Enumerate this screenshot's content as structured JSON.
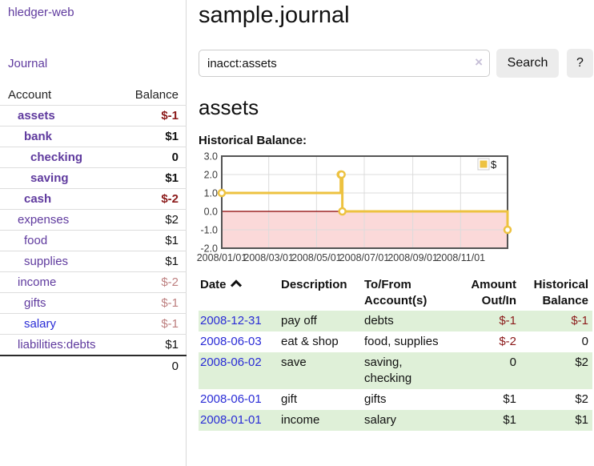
{
  "app": {
    "title": "hledger-web",
    "nav_journal": "Journal"
  },
  "sidebar": {
    "header": {
      "account": "Account",
      "balance": "Balance"
    },
    "accounts": [
      {
        "name": "assets",
        "indent": 1,
        "bold": true,
        "link": "purple",
        "balance": "$-1",
        "bclass": "b-neg"
      },
      {
        "name": "bank",
        "indent": 2,
        "bold": true,
        "link": "purple",
        "balance": "$1",
        "bclass": "b-pos"
      },
      {
        "name": "checking",
        "indent": 3,
        "bold": true,
        "link": "purple",
        "balance": "0",
        "bclass": "b-pos"
      },
      {
        "name": "saving",
        "indent": 3,
        "bold": true,
        "link": "purple",
        "balance": "$1",
        "bclass": "b-pos"
      },
      {
        "name": "cash",
        "indent": 2,
        "bold": true,
        "link": "purple",
        "balance": "$-2",
        "bclass": "b-neg"
      },
      {
        "name": "expenses",
        "indent": 1,
        "bold": false,
        "link": "purple",
        "balance": "$2",
        "bclass": "b-pos"
      },
      {
        "name": "food",
        "indent": 2,
        "bold": false,
        "link": "purple",
        "balance": "$1",
        "bclass": "b-pos"
      },
      {
        "name": "supplies",
        "indent": 2,
        "bold": false,
        "link": "purple",
        "balance": "$1",
        "bclass": "b-pos"
      },
      {
        "name": "income",
        "indent": 1,
        "bold": false,
        "link": "purple",
        "balance": "$-2",
        "bclass": "b-negm"
      },
      {
        "name": "gifts",
        "indent": 2,
        "bold": false,
        "link": "purple",
        "balance": "$-1",
        "bclass": "b-negm"
      },
      {
        "name": "salary",
        "indent": 2,
        "bold": false,
        "link": "blue",
        "balance": "$-1",
        "bclass": "b-negm"
      },
      {
        "name": "liabilities:debts",
        "indent": 1,
        "bold": false,
        "link": "purple",
        "balance": "$1",
        "bclass": "b-pos"
      }
    ],
    "total": "0"
  },
  "main": {
    "title": "sample.journal",
    "search": {
      "value": "inacct:assets",
      "clear_icon": "×",
      "button_label": "Search",
      "help_label": "?"
    },
    "heading": "assets"
  },
  "chart_data": {
    "type": "line",
    "title": "Historical Balance:",
    "xlim": [
      "2008-01-01",
      "2008-12-31"
    ],
    "ylim": [
      -2,
      3
    ],
    "x_ticks": [
      "2008/01/01",
      "2008/03/01",
      "2008/05/01",
      "2008/07/01",
      "2008/09/01",
      "2008/11/01"
    ],
    "y_ticks": [
      "3.0",
      "2.0",
      "1.0",
      "0.0",
      "-1.0",
      "-2.0"
    ],
    "legend_position": "top-right",
    "series": [
      {
        "name": "$",
        "color": "#edc240",
        "steps": true,
        "points": [
          [
            "2008-01-01",
            1
          ],
          [
            "2008-06-01",
            2
          ],
          [
            "2008-06-02",
            2
          ],
          [
            "2008-06-03",
            0
          ],
          [
            "2008-12-31",
            -1
          ]
        ]
      }
    ],
    "colors": {
      "grid": "#dcdcdc",
      "border": "#545454",
      "zero_line": "#8b0000",
      "negative_region": "#fbd9d9",
      "legend_box_border": "#cccccc",
      "tick_text": "#3b3b3b"
    }
  },
  "register": {
    "sort_column": "Date",
    "sort_direction": "ascending",
    "columns": [
      {
        "line1": "Date",
        "line2": "",
        "align": "left",
        "sorted": true
      },
      {
        "line1": "Description",
        "line2": "",
        "align": "left"
      },
      {
        "line1": "To/From",
        "line2": "Account(s)",
        "align": "left"
      },
      {
        "line1": "Amount",
        "line2": "Out/In",
        "align": "right"
      },
      {
        "line1": "Historical",
        "line2": "Balance",
        "align": "right"
      }
    ],
    "rows": [
      {
        "date": "2008-12-31",
        "description": "pay off",
        "accounts": [
          "debts"
        ],
        "amount": "$-1",
        "amount_negative": true,
        "balance": "$-1",
        "balance_negative": true
      },
      {
        "date": "2008-06-03",
        "description": "eat & shop",
        "accounts": [
          "food, supplies"
        ],
        "amount": "$-2",
        "amount_negative": true,
        "balance": "0",
        "balance_negative": false
      },
      {
        "date": "2008-06-02",
        "description": "save",
        "accounts": [
          "saving,",
          "checking"
        ],
        "amount": "0",
        "amount_negative": false,
        "balance": "$2",
        "balance_negative": false
      },
      {
        "date": "2008-06-01",
        "description": "gift",
        "accounts": [
          "gifts"
        ],
        "amount": "$1",
        "amount_negative": false,
        "balance": "$2",
        "balance_negative": false
      },
      {
        "date": "2008-01-01",
        "description": "income",
        "accounts": [
          "salary"
        ],
        "amount": "$1",
        "amount_negative": false,
        "balance": "$1",
        "balance_negative": false
      }
    ]
  }
}
